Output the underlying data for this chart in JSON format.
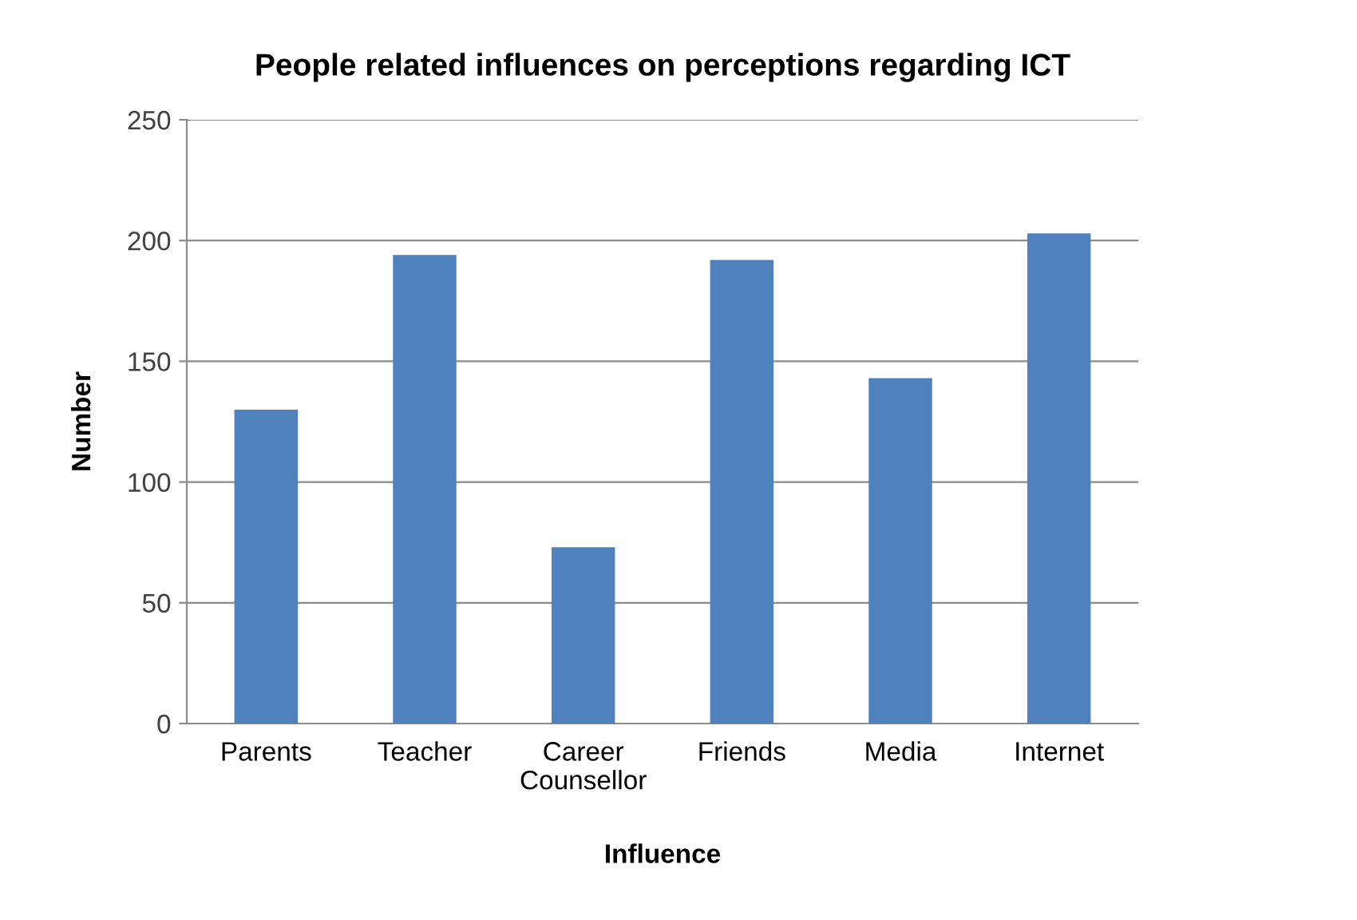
{
  "chart_data": {
    "type": "bar",
    "title": "People related influences on perceptions regarding ICT",
    "xlabel": "Influence",
    "ylabel": "Number",
    "categories": [
      "Parents",
      "Teacher",
      "Career\nCounsellor",
      "Friends",
      "Media",
      "Internet"
    ],
    "values": [
      130,
      194,
      73,
      192,
      143,
      203
    ],
    "color": "#4f81bd",
    "ylim": [
      0,
      250
    ],
    "yticks": [
      0,
      50,
      100,
      150,
      200,
      250
    ],
    "grid": "y"
  }
}
